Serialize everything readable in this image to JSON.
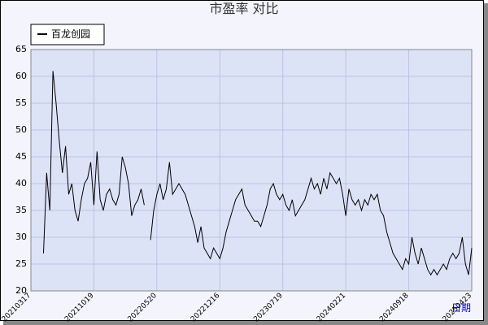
{
  "chart_data": {
    "type": "line",
    "title": "市盈率  对比",
    "xlabel": "日期",
    "categories": [
      "20210317",
      null,
      null,
      null,
      null,
      null,
      null,
      null,
      null,
      null,
      null,
      null,
      null,
      null,
      null,
      null,
      null,
      null,
      null,
      null,
      "20211019",
      null,
      null,
      null,
      null,
      null,
      null,
      null,
      null,
      null,
      null,
      null,
      null,
      null,
      null,
      null,
      null,
      null,
      null,
      null,
      "20220520",
      null,
      null,
      null,
      null,
      null,
      null,
      null,
      null,
      null,
      null,
      null,
      null,
      null,
      null,
      null,
      null,
      null,
      null,
      null,
      "20221216",
      null,
      null,
      null,
      null,
      null,
      null,
      null,
      null,
      null,
      null,
      null,
      null,
      null,
      null,
      null,
      null,
      null,
      null,
      null,
      "20230719",
      null,
      null,
      null,
      null,
      null,
      null,
      null,
      null,
      null,
      null,
      null,
      null,
      null,
      null,
      null,
      null,
      null,
      null,
      null,
      "20240221",
      null,
      null,
      null,
      null,
      null,
      null,
      null,
      null,
      null,
      null,
      null,
      null,
      null,
      null,
      null,
      null,
      null,
      null,
      null,
      "20240918",
      null,
      null,
      null,
      null,
      null,
      null,
      null,
      null,
      null,
      null,
      null,
      null,
      null,
      null,
      null,
      null,
      null,
      null,
      null,
      "20250423"
    ],
    "series": [
      {
        "name": "百龙创园",
        "color": "#000000",
        "values": [
          null,
          null,
          null,
          null,
          27,
          42,
          35,
          61,
          55,
          48,
          42,
          47,
          38,
          40,
          35,
          33,
          37,
          40,
          41,
          44,
          36,
          46,
          37,
          35,
          38,
          39,
          37,
          36,
          38,
          45,
          43,
          40,
          34,
          36,
          37,
          39,
          36,
          null,
          29.5,
          35,
          38,
          40,
          37,
          39,
          44,
          38,
          39,
          40,
          39,
          38,
          36,
          34,
          32,
          29,
          32,
          28,
          27,
          26,
          28,
          27,
          26,
          28,
          31,
          33,
          35,
          37,
          38,
          39,
          36,
          35,
          34,
          33,
          33,
          32,
          34,
          36,
          39,
          40,
          38,
          37,
          38,
          36,
          35,
          37,
          34,
          35,
          36,
          37,
          39,
          41,
          39,
          40,
          38,
          41,
          39,
          42,
          41,
          40,
          41,
          38,
          34,
          39,
          37,
          36,
          37,
          35,
          37,
          36,
          38,
          37,
          38,
          35,
          34,
          31,
          29,
          27,
          26,
          25,
          24,
          26,
          25,
          30,
          27,
          25,
          28,
          26,
          24,
          23,
          24,
          23,
          24,
          25,
          24,
          26,
          27,
          26,
          27,
          30,
          25,
          23,
          28
        ]
      }
    ],
    "ylim": [
      20,
      65
    ],
    "yticks": [
      20,
      25,
      30,
      35,
      40,
      45,
      50,
      55,
      60,
      65
    ],
    "grid": true
  }
}
